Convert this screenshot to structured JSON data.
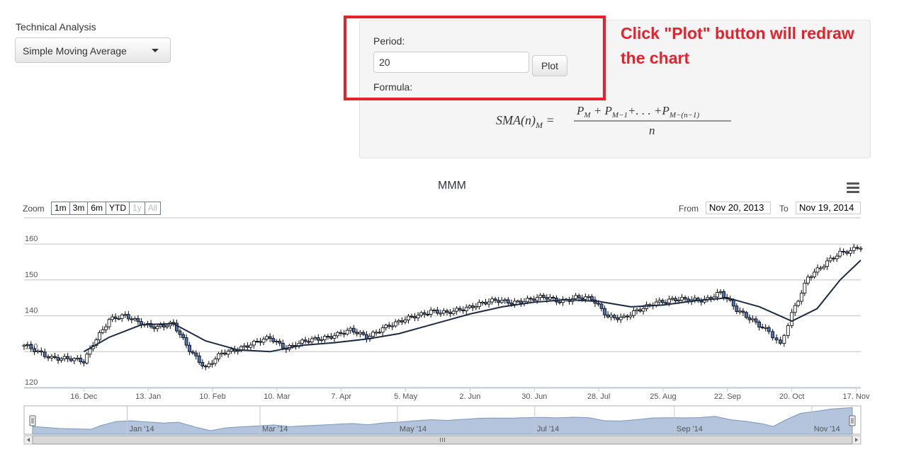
{
  "technical_analysis": {
    "label": "Technical Analysis",
    "selected": "Simple Moving Average"
  },
  "params": {
    "period_label": "Period:",
    "period_value": "20",
    "plot_button": "Plot",
    "formula_label": "Formula:"
  },
  "annotation": "Click \"Plot\" button will redraw the chart",
  "toolbar": {
    "zoom_label": "Zoom",
    "zoom_buttons": [
      "1m",
      "3m",
      "6m",
      "YTD",
      "1y",
      "All"
    ],
    "from_label": "From",
    "from_value": "Nov 20, 2013",
    "to_label": "To",
    "to_value": "Nov 19, 2014"
  },
  "colors": {
    "up_candle": "#ffffff",
    "down_candle": "#4a6fb5",
    "candle_outline": "#000000",
    "sma_line": "#1c2b44",
    "navigator_fill": "#b3c4dc",
    "navigator_line": "#7d97bf",
    "annotation": "#e8202a"
  },
  "chart_data": {
    "type": "candlestick",
    "title": "MMM",
    "ylim": [
      120,
      162
    ],
    "y_ticks": [
      120,
      130,
      140,
      150,
      160
    ],
    "y_tick_labels": [
      "120",
      "130",
      "140",
      "150",
      "160"
    ],
    "x_range": [
      "2013-11-20",
      "2014-11-19"
    ],
    "x_tick_dates": [
      "2013-12-16",
      "2014-01-13",
      "2014-02-10",
      "2014-03-10",
      "2014-04-07",
      "2014-05-05",
      "2014-06-02",
      "2014-06-30",
      "2014-07-28",
      "2014-08-25",
      "2014-09-22",
      "2014-10-20",
      "2014-11-17"
    ],
    "x_tick_labels": [
      "16. Dec",
      "13. Jan",
      "10. Feb",
      "10. Mar",
      "7. Apr",
      "5. May",
      "2. Jun",
      "30. Jun",
      "28. Jul",
      "25. Aug",
      "22. Sep",
      "20. Oct",
      "17. Nov"
    ],
    "close_series": [
      [
        "2013-11-20",
        131.5
      ],
      [
        "2013-12-02",
        128.5
      ],
      [
        "2013-12-16",
        127.2
      ],
      [
        "2013-12-20",
        132.5
      ],
      [
        "2013-12-27",
        138.8
      ],
      [
        "2014-01-03",
        139.8
      ],
      [
        "2014-01-10",
        138.2
      ],
      [
        "2014-01-17",
        136.6
      ],
      [
        "2014-01-24",
        137.6
      ],
      [
        "2014-01-31",
        130.8
      ],
      [
        "2014-02-07",
        125.2
      ],
      [
        "2014-02-14",
        129.5
      ],
      [
        "2014-02-21",
        131.0
      ],
      [
        "2014-02-28",
        132.2
      ],
      [
        "2014-03-07",
        133.8
      ],
      [
        "2014-03-14",
        131.2
      ],
      [
        "2014-03-21",
        132.5
      ],
      [
        "2014-03-28",
        133.5
      ],
      [
        "2014-04-04",
        134.8
      ],
      [
        "2014-04-11",
        135.8
      ],
      [
        "2014-04-18",
        134.0
      ],
      [
        "2014-04-25",
        136.8
      ],
      [
        "2014-05-02",
        138.0
      ],
      [
        "2014-05-09",
        140.0
      ],
      [
        "2014-05-16",
        141.5
      ],
      [
        "2014-05-23",
        140.5
      ],
      [
        "2014-05-30",
        142.0
      ],
      [
        "2014-06-06",
        143.5
      ],
      [
        "2014-06-13",
        144.0
      ],
      [
        "2014-06-20",
        143.8
      ],
      [
        "2014-06-27",
        144.5
      ],
      [
        "2014-07-04",
        145.0
      ],
      [
        "2014-07-11",
        144.2
      ],
      [
        "2014-07-18",
        145.2
      ],
      [
        "2014-07-25",
        144.5
      ],
      [
        "2014-08-01",
        140.0
      ],
      [
        "2014-08-08",
        139.5
      ],
      [
        "2014-08-15",
        141.5
      ],
      [
        "2014-08-22",
        144.0
      ],
      [
        "2014-08-29",
        144.5
      ],
      [
        "2014-09-05",
        144.2
      ],
      [
        "2014-09-12",
        144.6
      ],
      [
        "2014-09-19",
        146.5
      ],
      [
        "2014-09-26",
        141.5
      ],
      [
        "2014-10-03",
        139.0
      ],
      [
        "2014-10-10",
        135.5
      ],
      [
        "2014-10-15",
        131.5
      ],
      [
        "2014-10-20",
        140.5
      ],
      [
        "2014-10-27",
        151.0
      ],
      [
        "2014-11-03",
        154.0
      ],
      [
        "2014-11-10",
        157.5
      ],
      [
        "2014-11-19",
        159.5
      ]
    ],
    "sma_series": [
      [
        "2013-12-16",
        130.0
      ],
      [
        "2013-12-27",
        134.0
      ],
      [
        "2014-01-10",
        137.5
      ],
      [
        "2014-01-24",
        137.8
      ],
      [
        "2014-02-07",
        133.0
      ],
      [
        "2014-02-21",
        130.5
      ],
      [
        "2014-03-07",
        130.0
      ],
      [
        "2014-03-21",
        131.8
      ],
      [
        "2014-04-04",
        132.5
      ],
      [
        "2014-04-18",
        133.5
      ],
      [
        "2014-05-02",
        135.0
      ],
      [
        "2014-05-16",
        137.5
      ],
      [
        "2014-06-02",
        140.5
      ],
      [
        "2014-06-16",
        142.5
      ],
      [
        "2014-06-30",
        143.8
      ],
      [
        "2014-07-14",
        144.5
      ],
      [
        "2014-07-28",
        144.0
      ],
      [
        "2014-08-11",
        142.5
      ],
      [
        "2014-08-25",
        143.0
      ],
      [
        "2014-09-08",
        144.2
      ],
      [
        "2014-09-22",
        145.0
      ],
      [
        "2014-10-06",
        142.5
      ],
      [
        "2014-10-20",
        138.5
      ],
      [
        "2014-10-31",
        142.0
      ],
      [
        "2014-11-10",
        150.0
      ],
      [
        "2014-11-19",
        155.5
      ]
    ],
    "navigator": {
      "x_labels": [
        "Jan '14",
        "Mar '14",
        "May '14",
        "Jul '14",
        "Sep '14",
        "Nov '14"
      ],
      "x_label_dates": [
        "2014-01-01",
        "2014-03-01",
        "2014-05-01",
        "2014-07-01",
        "2014-09-01",
        "2014-11-01"
      ]
    }
  }
}
